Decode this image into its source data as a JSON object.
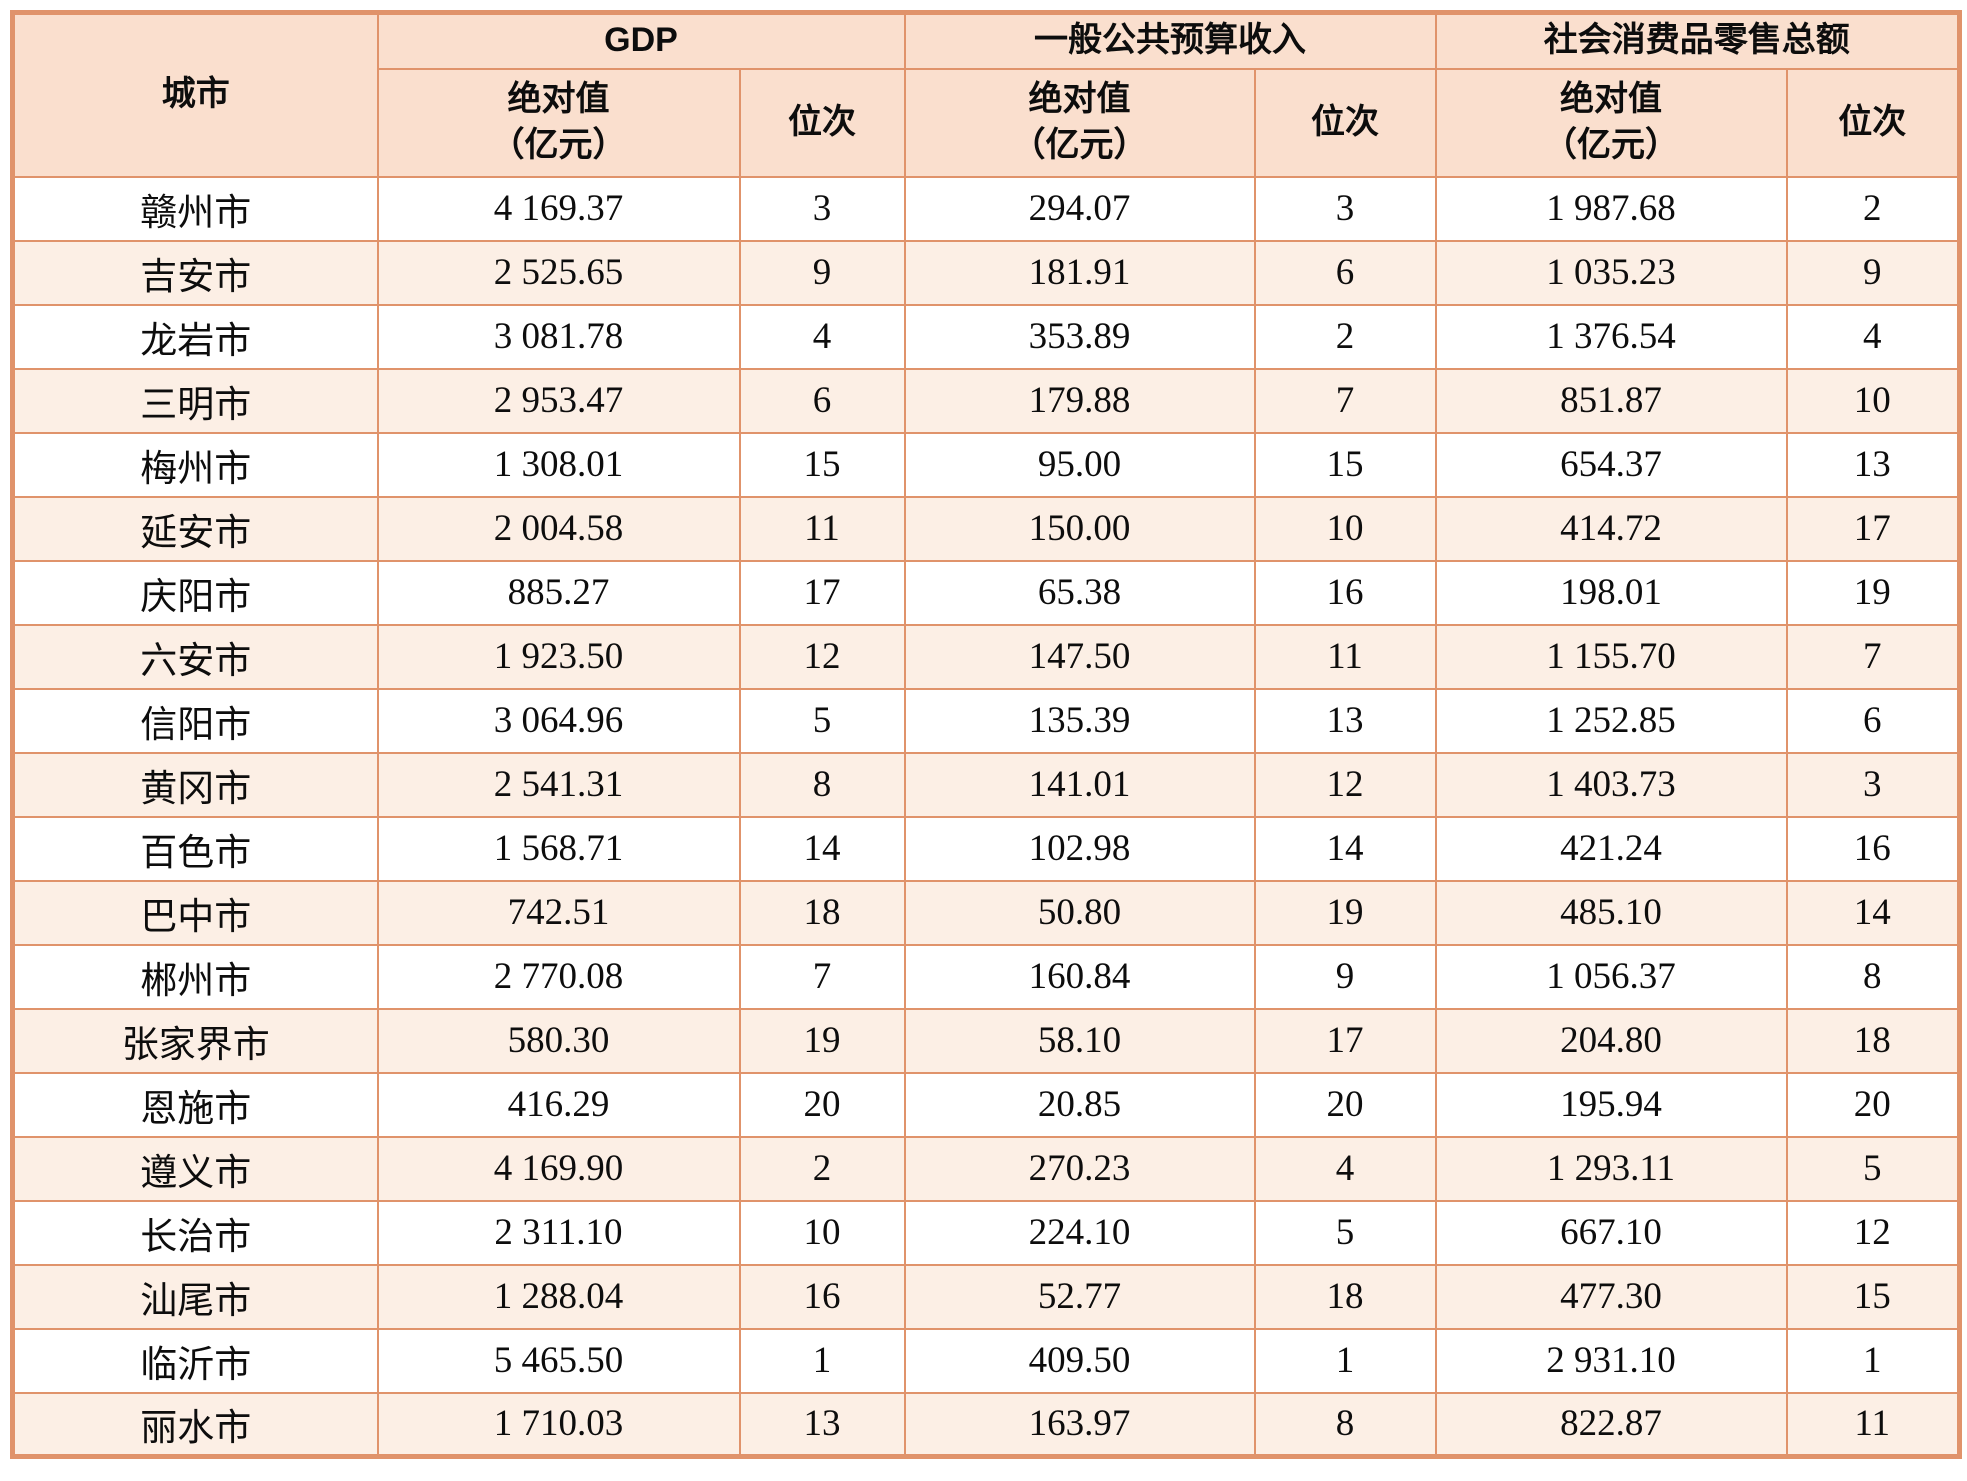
{
  "table": {
    "header": {
      "city_label": "城市",
      "abs_label": "绝对值",
      "abs_unit": "（亿元）",
      "rank_label": "位次",
      "groups": [
        {
          "label": "GDP"
        },
        {
          "label": "一般公共预算收入"
        },
        {
          "label": "社会消费品零售总额"
        }
      ]
    },
    "rows": [
      {
        "city": "赣州市",
        "gdp_value": "4 169.37",
        "gdp_rank": "3",
        "budget_value": "294.07",
        "budget_rank": "3",
        "retail_value": "1 987.68",
        "retail_rank": "2"
      },
      {
        "city": "吉安市",
        "gdp_value": "2 525.65",
        "gdp_rank": "9",
        "budget_value": "181.91",
        "budget_rank": "6",
        "retail_value": "1 035.23",
        "retail_rank": "9"
      },
      {
        "city": "龙岩市",
        "gdp_value": "3 081.78",
        "gdp_rank": "4",
        "budget_value": "353.89",
        "budget_rank": "2",
        "retail_value": "1 376.54",
        "retail_rank": "4"
      },
      {
        "city": "三明市",
        "gdp_value": "2 953.47",
        "gdp_rank": "6",
        "budget_value": "179.88",
        "budget_rank": "7",
        "retail_value": "851.87",
        "retail_rank": "10"
      },
      {
        "city": "梅州市",
        "gdp_value": "1 308.01",
        "gdp_rank": "15",
        "budget_value": "95.00",
        "budget_rank": "15",
        "retail_value": "654.37",
        "retail_rank": "13"
      },
      {
        "city": "延安市",
        "gdp_value": "2 004.58",
        "gdp_rank": "11",
        "budget_value": "150.00",
        "budget_rank": "10",
        "retail_value": "414.72",
        "retail_rank": "17"
      },
      {
        "city": "庆阳市",
        "gdp_value": "885.27",
        "gdp_rank": "17",
        "budget_value": "65.38",
        "budget_rank": "16",
        "retail_value": "198.01",
        "retail_rank": "19"
      },
      {
        "city": "六安市",
        "gdp_value": "1 923.50",
        "gdp_rank": "12",
        "budget_value": "147.50",
        "budget_rank": "11",
        "retail_value": "1 155.70",
        "retail_rank": "7"
      },
      {
        "city": "信阳市",
        "gdp_value": "3 064.96",
        "gdp_rank": "5",
        "budget_value": "135.39",
        "budget_rank": "13",
        "retail_value": "1 252.85",
        "retail_rank": "6"
      },
      {
        "city": "黄冈市",
        "gdp_value": "2 541.31",
        "gdp_rank": "8",
        "budget_value": "141.01",
        "budget_rank": "12",
        "retail_value": "1 403.73",
        "retail_rank": "3"
      },
      {
        "city": "百色市",
        "gdp_value": "1 568.71",
        "gdp_rank": "14",
        "budget_value": "102.98",
        "budget_rank": "14",
        "retail_value": "421.24",
        "retail_rank": "16"
      },
      {
        "city": "巴中市",
        "gdp_value": "742.51",
        "gdp_rank": "18",
        "budget_value": "50.80",
        "budget_rank": "19",
        "retail_value": "485.10",
        "retail_rank": "14"
      },
      {
        "city": "郴州市",
        "gdp_value": "2 770.08",
        "gdp_rank": "7",
        "budget_value": "160.84",
        "budget_rank": "9",
        "retail_value": "1 056.37",
        "retail_rank": "8"
      },
      {
        "city": "张家界市",
        "gdp_value": "580.30",
        "gdp_rank": "19",
        "budget_value": "58.10",
        "budget_rank": "17",
        "retail_value": "204.80",
        "retail_rank": "18"
      },
      {
        "city": "恩施市",
        "gdp_value": "416.29",
        "gdp_rank": "20",
        "budget_value": "20.85",
        "budget_rank": "20",
        "retail_value": "195.94",
        "retail_rank": "20"
      },
      {
        "city": "遵义市",
        "gdp_value": "4 169.90",
        "gdp_rank": "2",
        "budget_value": "270.23",
        "budget_rank": "4",
        "retail_value": "1 293.11",
        "retail_rank": "5"
      },
      {
        "city": "长治市",
        "gdp_value": "2 311.10",
        "gdp_rank": "10",
        "budget_value": "224.10",
        "budget_rank": "5",
        "retail_value": "667.10",
        "retail_rank": "12"
      },
      {
        "city": "汕尾市",
        "gdp_value": "1 288.04",
        "gdp_rank": "16",
        "budget_value": "52.77",
        "budget_rank": "18",
        "retail_value": "477.30",
        "retail_rank": "15"
      },
      {
        "city": "临沂市",
        "gdp_value": "5 465.50",
        "gdp_rank": "1",
        "budget_value": "409.50",
        "budget_rank": "1",
        "retail_value": "2 931.10",
        "retail_rank": "1"
      },
      {
        "city": "丽水市",
        "gdp_value": "1 710.03",
        "gdp_rank": "13",
        "budget_value": "163.97",
        "budget_rank": "8",
        "retail_value": "822.87",
        "retail_rank": "11"
      }
    ]
  },
  "colors": {
    "border": "#e0936b",
    "header_background": "#fadfce",
    "row_alternate": "#fcefe5",
    "text": "#0d0d0d"
  }
}
